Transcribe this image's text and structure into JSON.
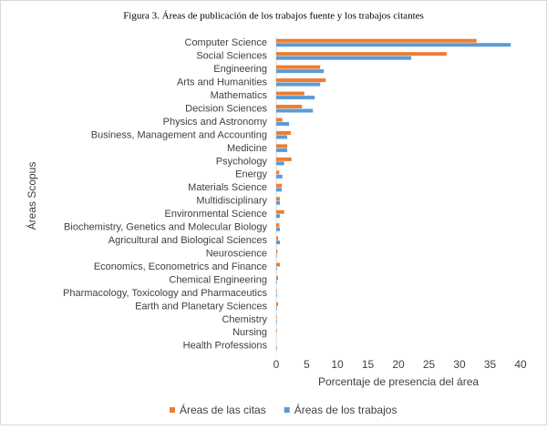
{
  "chart_data": {
    "type": "hbar",
    "title": "Figura 3. Áreas de publicación de los trabajos fuente y los trabajos citantes",
    "x_label": "Porcentaje de presencia del área",
    "y_label": "Áreas Scopus",
    "categories": [
      "Computer Science",
      "Social Sciences",
      "Engineering",
      "Arts and Humanities",
      "Mathematics",
      "Decision Sciences",
      "Physics and Astronomy",
      "Business, Management and Accounting",
      "Medicine",
      "Psychology",
      "Energy",
      "Materials Science",
      "Multidisciplinary",
      "Environmental Science",
      "Biochemistry, Genetics and Molecular Biology",
      "Agricultural and Biological Sciences",
      "Neuroscience",
      "Economics, Econometrics and Finance",
      "Chemical Engineering",
      "Pharmacology, Toxicology and Pharmaceutics",
      "Earth and Planetary Sciences",
      "Chemistry",
      "Nursing",
      "Health Professions"
    ],
    "series": [
      {
        "name": "Áreas de las citas",
        "color": "#ed7d31",
        "values": [
          32.8,
          27.9,
          7.2,
          8.1,
          4.6,
          4.2,
          1.0,
          2.4,
          1.8,
          2.5,
          0.5,
          0.9,
          0.6,
          1.3,
          0.5,
          0.3,
          0.2,
          0.6,
          0.3,
          0.1,
          0.3,
          0.1,
          0.1,
          0
        ]
      },
      {
        "name": "Áreas de los trabajos",
        "color": "#5b9bd5",
        "values": [
          38.4,
          22.1,
          7.8,
          7.2,
          6.3,
          6.0,
          2.1,
          1.8,
          1.8,
          1.3,
          1.0,
          0.9,
          0.6,
          0.6,
          0.6,
          0.6,
          0.1,
          0.1,
          0.1,
          0.1,
          0.1,
          0.1,
          0,
          0.1
        ]
      }
    ],
    "xlim": [
      0,
      40
    ],
    "xticks": [
      0,
      5,
      10,
      15,
      20,
      25,
      30,
      35,
      40
    ],
    "legend": "bottom"
  }
}
